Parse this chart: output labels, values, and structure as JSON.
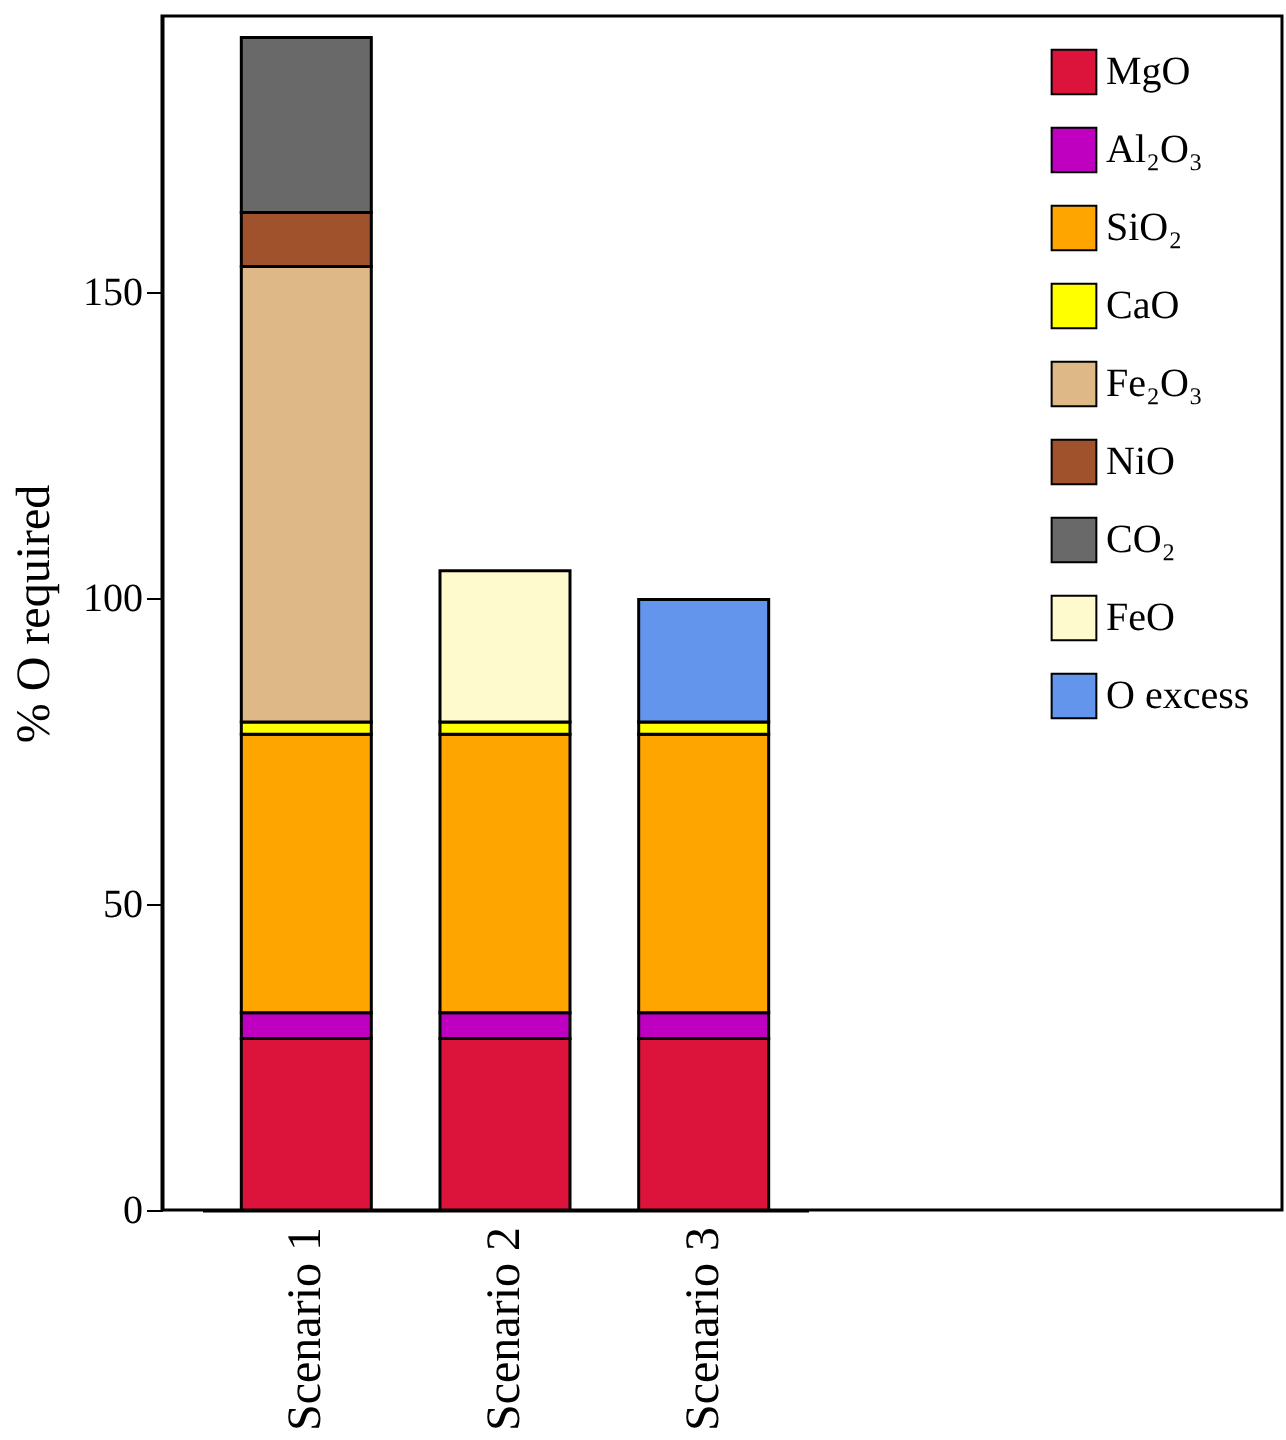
{
  "chart_data": {
    "type": "bar",
    "stacked": true,
    "ylabel": "% O required",
    "categories": [
      "Scenario 1",
      "Scenario 2",
      "Scenario 3"
    ],
    "series": [
      {
        "name": "MgO",
        "color": "#dc143c",
        "values": [
          28,
          28,
          28
        ]
      },
      {
        "name": "Al₂O₃",
        "color": "#c000c0",
        "values": [
          4.2,
          4.2,
          4.2
        ]
      },
      {
        "name": "SiO₂",
        "color": "#ffa500",
        "values": [
          45.5,
          45.5,
          45.5
        ]
      },
      {
        "name": "CaO",
        "color": "#ffff00",
        "values": [
          2,
          2,
          2
        ]
      },
      {
        "name": "Fe₂O₃",
        "color": "#deb887",
        "values": [
          74.4,
          null,
          null
        ]
      },
      {
        "name": "NiO",
        "color": "#a0522d",
        "values": [
          8.8,
          null,
          null
        ]
      },
      {
        "name": "CO₂",
        "color": "#696969",
        "values": [
          28.6,
          null,
          null
        ]
      },
      {
        "name": "FeO",
        "color": "#fffacd",
        "values": [
          null,
          24.7,
          null
        ]
      },
      {
        "name": "O excess",
        "color": "#6495ed",
        "values": [
          null,
          null,
          20
        ]
      }
    ],
    "ylim": [
      0,
      195
    ],
    "yticks": [
      0,
      50,
      100,
      150
    ],
    "legend": "top right",
    "grid": false
  }
}
